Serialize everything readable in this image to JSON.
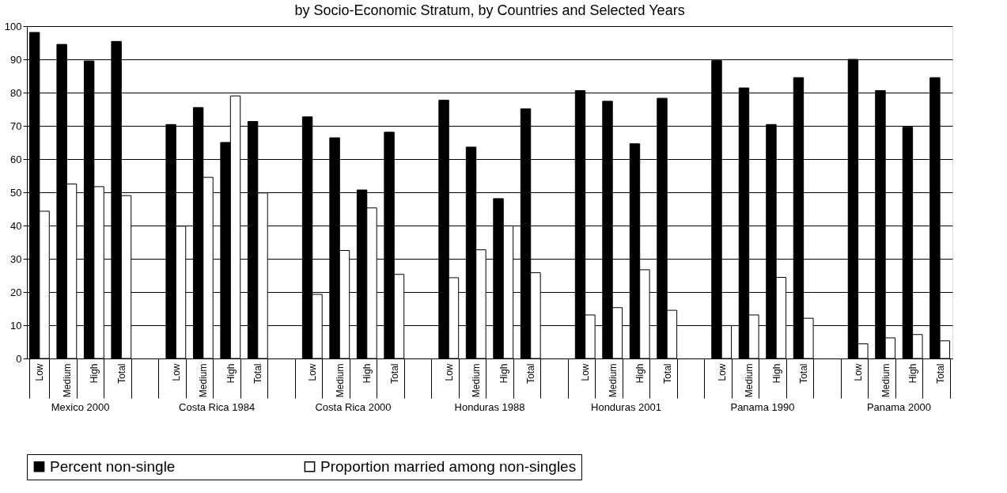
{
  "chart_data": {
    "type": "bar",
    "title": "by Socio-Economic Stratum, by Countries and Selected Years",
    "categories": [
      "Low",
      "Medium",
      "High",
      "Total",
      null,
      "Low",
      "Medium",
      "High",
      "Total",
      null,
      "Low",
      "Medium",
      "High",
      "Total",
      null,
      "Low",
      "Medium",
      "High",
      "Total",
      null,
      "Low",
      "Medium",
      "High",
      "Total",
      null,
      "Low",
      "Medium",
      "High",
      "Total",
      null,
      "Low",
      "Medium",
      "High",
      "Total"
    ],
    "series": [
      {
        "name": "Percent non-single",
        "color": "#000000",
        "values": [
          98.1,
          94.5,
          89.5,
          95.4,
          null,
          70.4,
          75.5,
          65.0,
          71.3,
          null,
          72.7,
          66.4,
          50.7,
          68.1,
          null,
          77.7,
          63.6,
          48.1,
          75.1,
          null,
          80.6,
          77.4,
          64.6,
          78.3,
          null,
          89.6,
          81.4,
          70.4,
          84.5,
          null,
          90.0,
          80.6,
          69.6,
          84.5
        ]
      },
      {
        "name": "Proportion married among non-singles",
        "color": "#ffffff",
        "values": [
          44.3,
          52.5,
          51.7,
          49.0,
          null,
          39.8,
          54.5,
          79.0,
          49.8,
          null,
          19.3,
          32.5,
          45.3,
          25.3,
          null,
          24.3,
          32.7,
          39.9,
          25.8,
          null,
          13.1,
          15.3,
          26.7,
          14.5,
          null,
          9.9,
          13.1,
          24.4,
          12.1,
          null,
          4.4,
          6.2,
          7.2,
          5.3
        ]
      }
    ],
    "annotations": [
      "Mexico 2000",
      "Costa Rica 1984",
      "Costa Rica 2000",
      "Honduras 1988",
      "Honduras 2001",
      "Panama 1990",
      "Panama 2000"
    ],
    "ylim": [
      0,
      100
    ],
    "yticks": [
      0,
      10,
      20,
      30,
      40,
      50,
      60,
      70,
      80,
      90,
      100
    ],
    "grid": "y",
    "legend": "bottom"
  }
}
